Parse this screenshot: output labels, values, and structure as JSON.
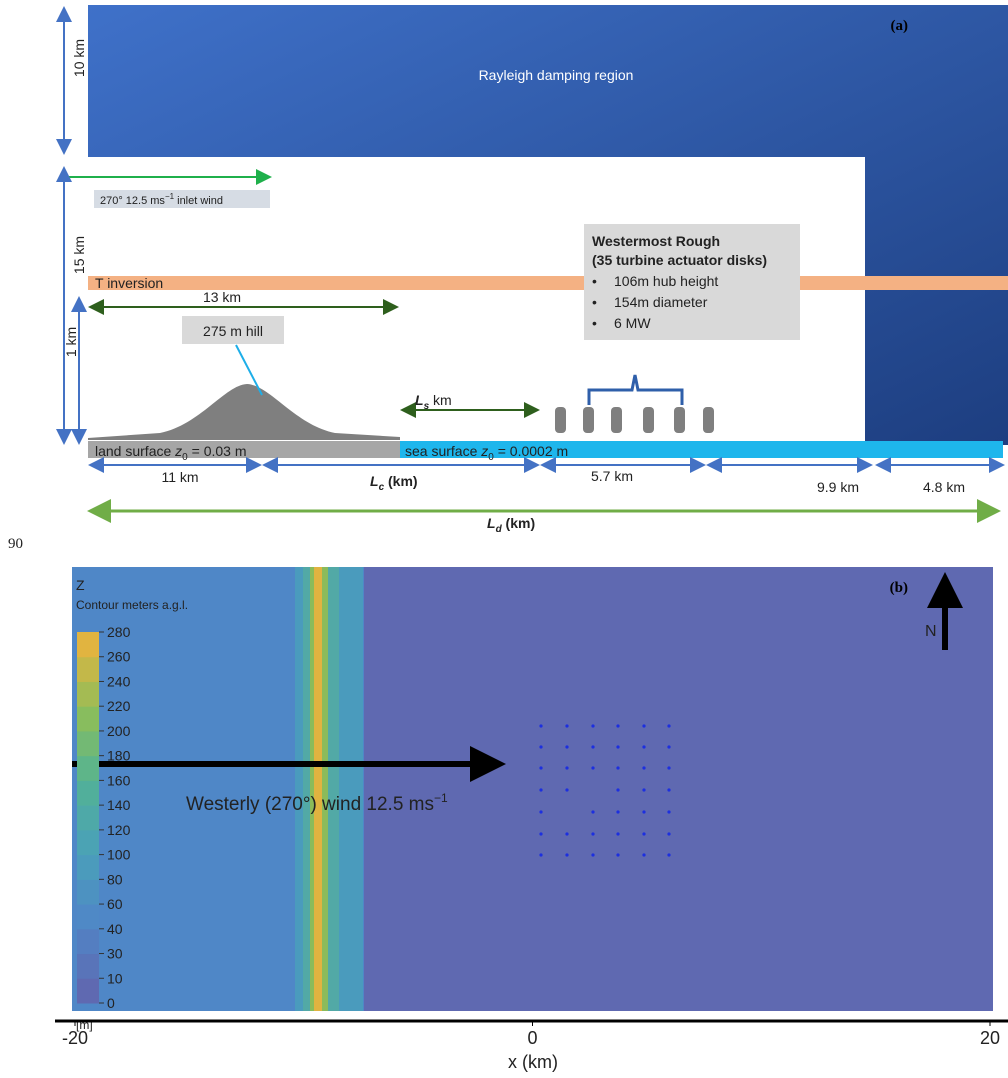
{
  "page_number": "90",
  "panel_a": {
    "label": "(a)",
    "damping_label": "Rayleigh damping region",
    "inlet_wind": {
      "pre": "270° 12.5 ms",
      "sup": "−1",
      "post": " inlet wind"
    },
    "inversion_label": "T inversion",
    "hill_label": "275 m hill",
    "farm_box": {
      "title": "Westermost Rough",
      "subtitle": "(35 turbine actuator disks)",
      "bullets": [
        "106m hub height",
        "154m diameter",
        "6 MW"
      ]
    },
    "land_label": {
      "pre": "land surface ",
      "var": "z",
      "sub": "0",
      "post": " = 0.03 m"
    },
    "sea_label": {
      "pre": "sea surface ",
      "var": "z",
      "sub": "0",
      "post": " = 0.0002 m"
    },
    "dimensions": {
      "damping_height": "10 km",
      "domain_height": "15 km",
      "inversion_height": "1 km",
      "hill_extent": "13 km",
      "ls": {
        "var": "L",
        "sub": "s",
        "post": " km"
      },
      "land_width": "11 km",
      "lc": {
        "var": "L",
        "sub": "c",
        "post": " (km)"
      },
      "farm_width": "5.7 km",
      "downstream": "9.9 km",
      "damping_width": "4.8 km",
      "ld": {
        "var": "L",
        "sub": "d",
        "post": " (km)"
      }
    }
  },
  "panel_b": {
    "label": "(b)",
    "colorbar_title": "Z",
    "colorbar_subtitle": "Contour meters a.g.l.",
    "colorbar_unit": "[m]",
    "colorbar_levels": [
      0,
      10,
      30,
      40,
      60,
      80,
      100,
      120,
      140,
      160,
      180,
      200,
      220,
      240,
      260,
      280
    ],
    "wind_label": {
      "pre": "Westerly (270°) wind 12.5 ms",
      "sup": "−1"
    },
    "north_label": "N",
    "x_label": "x (km)",
    "xlim": [
      -20,
      20
    ],
    "xticks": [
      -20,
      0,
      20
    ]
  }
}
